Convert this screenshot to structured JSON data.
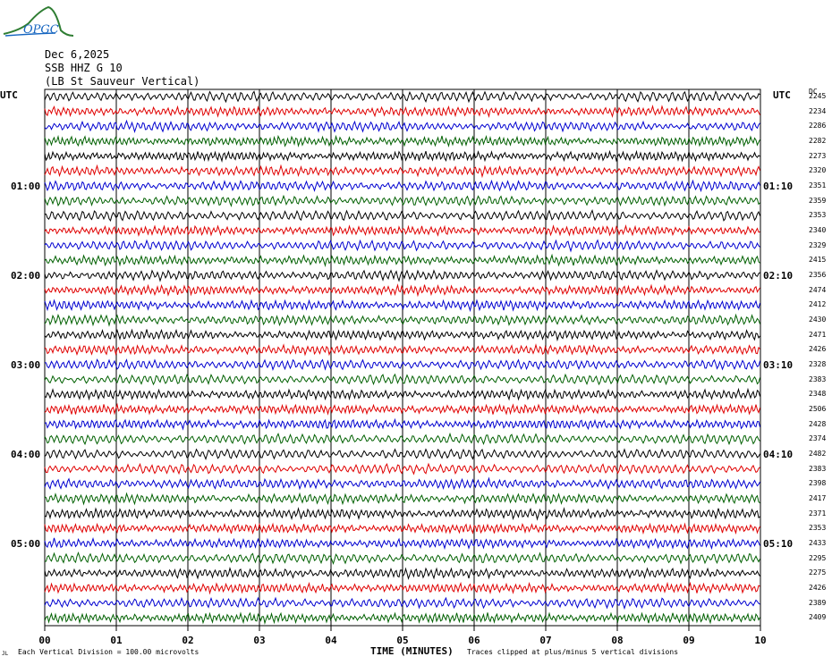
{
  "header": {
    "logo_text": "OPGC",
    "date": "Dec 6,2025",
    "station": "SSB HHZ G 10",
    "location": "(LB  St Sauveur Vertical)",
    "left_tz": "UTC",
    "right_tz": "UTC",
    "dc_label": "DC"
  },
  "left_time_labels": [
    "01:00",
    "02:00",
    "03:00",
    "04:00",
    "05:00"
  ],
  "right_time_labels": [
    "01:10",
    "02:10",
    "03:10",
    "04:10",
    "05:10"
  ],
  "footer": {
    "xlabel": "TIME (MINUTES)",
    "scale_note": "Each Vertical Division =  100.00 microvolts",
    "clip_note": "Traces clipped at plus/minus 5 vertical divisions",
    "corner_mark": "JL"
  },
  "colors": {
    "cycle": [
      "#000000",
      "#e00000",
      "#0000d0",
      "#006000"
    ],
    "grid": "#000000"
  },
  "chart_data": {
    "type": "line",
    "title": "",
    "xlabel": "TIME (MINUTES)",
    "ylabel": "",
    "xlim": [
      0,
      10
    ],
    "xticks": [
      "00",
      "01",
      "02",
      "03",
      "04",
      "05",
      "06",
      "07",
      "08",
      "09",
      "10"
    ],
    "trace_count": 36,
    "trace_interval_minutes": 10,
    "trace_dc_offsets": [
      2245,
      2234,
      2286,
      2282,
      2273,
      2320,
      2351,
      2359,
      2353,
      2340,
      2329,
      2415,
      2356,
      2474,
      2412,
      2430,
      2471,
      2426,
      2328,
      2383,
      2348,
      2506,
      2428,
      2374,
      2482,
      2383,
      2398,
      2417,
      2371,
      2353,
      2433,
      2295,
      2275,
      2426,
      2389,
      2409
    ],
    "grid": true
  }
}
